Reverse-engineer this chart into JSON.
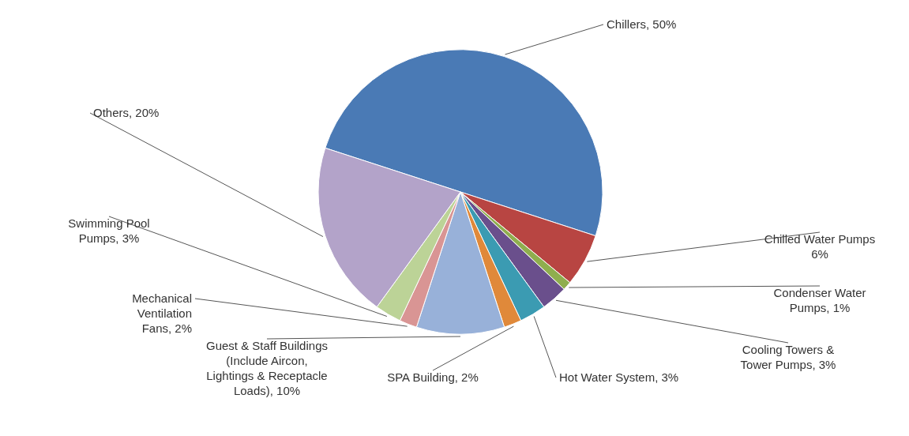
{
  "chart_data": {
    "type": "pie",
    "categories": [
      "Chillers",
      "Chilled Water Pumps",
      "Condenser Water Pumps",
      "Cooling Towers & Tower Pumps",
      "Hot Water System",
      "SPA Building",
      "Guest & Staff Buildings (Include Aircon, Lightings & Receptacle Loads)",
      "Mechanical Ventilation Fans",
      "Swimming Pool Pumps",
      "Others"
    ],
    "values": [
      50,
      6,
      1,
      3,
      3,
      2,
      10,
      2,
      3,
      20
    ],
    "value_labels": [
      "50%",
      "6%",
      "1%",
      "3%",
      "3%",
      "2%",
      "10%",
      "2%",
      "3%",
      "20%"
    ],
    "colors": [
      "#4a7ab5",
      "#b84542",
      "#8fae4e",
      "#6a4f8c",
      "#3b9bb2",
      "#e0893a",
      "#98b1d9",
      "#d99594",
      "#bcd397",
      "#b3a3c9"
    ],
    "data_labels": true
  }
}
